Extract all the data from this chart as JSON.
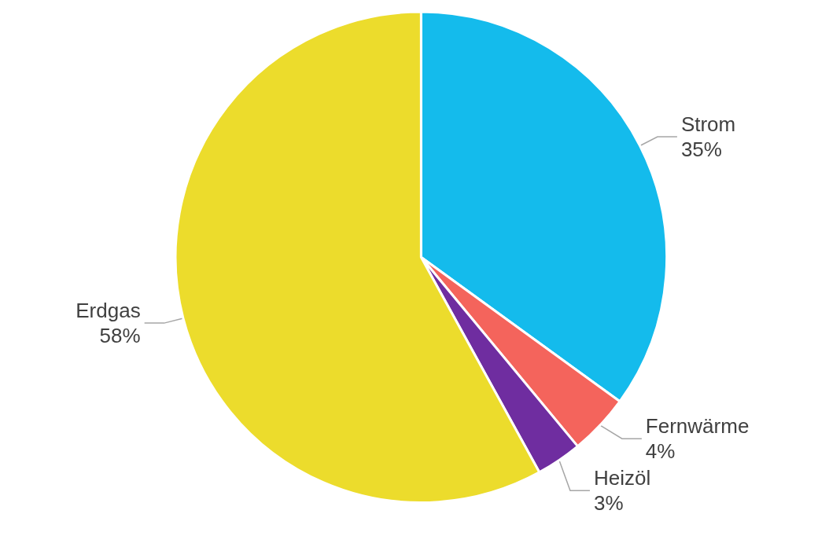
{
  "chart_data": {
    "type": "pie",
    "categories": [
      "Strom",
      "Fernwärme",
      "Heizöl",
      "Erdgas"
    ],
    "values": [
      35,
      4,
      3,
      58
    ],
    "value_labels": [
      "35%",
      "4%",
      "3%",
      "58%"
    ],
    "colors": [
      "#14bbec",
      "#f4645c",
      "#6f2da0",
      "#ecdc2c"
    ],
    "legend": false
  }
}
